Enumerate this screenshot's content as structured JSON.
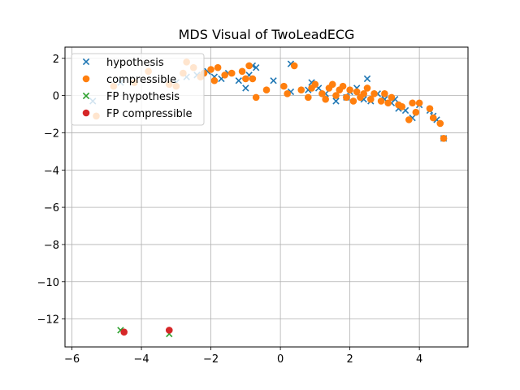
{
  "chart_data": {
    "type": "scatter",
    "title": "MDS Visual of TwoLeadECG",
    "xlabel": "",
    "ylabel": "",
    "xlim": [
      -6.2,
      5.4
    ],
    "ylim": [
      -13.5,
      2.6
    ],
    "xticks": [
      -6,
      -4,
      -2,
      0,
      2,
      4
    ],
    "yticks": [
      2,
      0,
      -2,
      -4,
      -6,
      -8,
      -10,
      -12
    ],
    "xtick_labels": [
      "−6",
      "−4",
      "−2",
      "0",
      "2",
      "4"
    ],
    "ytick_labels": [
      "2",
      "0",
      "−2",
      "−4",
      "−6",
      "−8",
      "−10",
      "−12"
    ],
    "grid": true,
    "legend_position": "top-left",
    "series": [
      {
        "name": "hypothesis",
        "marker": "x",
        "color": "#1f77b4",
        "points": [
          [
            -5.4,
            -0.3
          ],
          [
            -4.6,
            0.7
          ],
          [
            -3.0,
            0.7
          ],
          [
            -2.7,
            1.0
          ],
          [
            -2.4,
            1.1
          ],
          [
            -2.1,
            1.3
          ],
          [
            -1.9,
            1.0
          ],
          [
            -1.7,
            0.9
          ],
          [
            -1.5,
            1.2
          ],
          [
            -1.2,
            0.8
          ],
          [
            -1.0,
            0.4
          ],
          [
            -0.9,
            1.1
          ],
          [
            -0.8,
            1.6
          ],
          [
            -0.7,
            1.5
          ],
          [
            -0.2,
            0.8
          ],
          [
            0.3,
            0.2
          ],
          [
            0.3,
            1.7
          ],
          [
            0.8,
            0.3
          ],
          [
            0.9,
            0.7
          ],
          [
            1.1,
            0.4
          ],
          [
            1.3,
            0.1
          ],
          [
            1.6,
            -0.3
          ],
          [
            1.9,
            -0.1
          ],
          [
            2.0,
            0.2
          ],
          [
            2.2,
            0.4
          ],
          [
            2.4,
            -0.2
          ],
          [
            2.5,
            0.9
          ],
          [
            2.6,
            -0.3
          ],
          [
            2.8,
            0.1
          ],
          [
            3.0,
            -0.2
          ],
          [
            3.2,
            -0.4
          ],
          [
            3.3,
            -0.2
          ],
          [
            3.4,
            -0.7
          ],
          [
            3.6,
            -0.8
          ],
          [
            3.8,
            -1.2
          ],
          [
            4.0,
            -0.5
          ],
          [
            4.3,
            -0.8
          ],
          [
            4.4,
            -1.1
          ],
          [
            4.5,
            -1.3
          ],
          [
            4.7,
            -2.3
          ]
        ]
      },
      {
        "name": "compressible",
        "marker": "o",
        "color": "#ff7f0e",
        "points": [
          [
            -5.3,
            -1.1
          ],
          [
            -4.8,
            0.5
          ],
          [
            -4.2,
            0.7
          ],
          [
            -3.8,
            1.3
          ],
          [
            -3.2,
            0.6
          ],
          [
            -3.0,
            0.5
          ],
          [
            -2.8,
            1.2
          ],
          [
            -2.7,
            1.8
          ],
          [
            -2.5,
            1.5
          ],
          [
            -2.3,
            1.0
          ],
          [
            -2.2,
            1.2
          ],
          [
            -2.0,
            1.4
          ],
          [
            -1.9,
            0.8
          ],
          [
            -1.8,
            1.5
          ],
          [
            -1.6,
            1.1
          ],
          [
            -1.4,
            1.2
          ],
          [
            -1.1,
            1.3
          ],
          [
            -1.0,
            0.9
          ],
          [
            -0.9,
            1.6
          ],
          [
            -0.8,
            0.9
          ],
          [
            -0.7,
            -0.1
          ],
          [
            -0.4,
            0.3
          ],
          [
            0.1,
            0.5
          ],
          [
            0.2,
            0.1
          ],
          [
            0.4,
            1.6
          ],
          [
            0.6,
            0.3
          ],
          [
            0.8,
            -0.1
          ],
          [
            0.9,
            0.4
          ],
          [
            1.0,
            0.6
          ],
          [
            1.2,
            0.1
          ],
          [
            1.3,
            -0.2
          ],
          [
            1.4,
            0.4
          ],
          [
            1.5,
            0.6
          ],
          [
            1.6,
            0.0
          ],
          [
            1.7,
            0.3
          ],
          [
            1.8,
            0.5
          ],
          [
            1.9,
            -0.1
          ],
          [
            2.0,
            0.3
          ],
          [
            2.1,
            -0.3
          ],
          [
            2.2,
            0.2
          ],
          [
            2.3,
            -0.1
          ],
          [
            2.4,
            0.1
          ],
          [
            2.5,
            0.4
          ],
          [
            2.6,
            -0.2
          ],
          [
            2.7,
            0.1
          ],
          [
            2.9,
            -0.3
          ],
          [
            3.0,
            0.1
          ],
          [
            3.1,
            -0.4
          ],
          [
            3.2,
            -0.1
          ],
          [
            3.4,
            -0.5
          ],
          [
            3.5,
            -0.6
          ],
          [
            3.7,
            -1.3
          ],
          [
            3.8,
            -0.4
          ],
          [
            3.9,
            -0.9
          ],
          [
            4.0,
            -0.4
          ],
          [
            4.3,
            -0.7
          ],
          [
            4.4,
            -1.2
          ],
          [
            4.6,
            -1.5
          ],
          [
            4.7,
            -2.3
          ]
        ]
      },
      {
        "name": "FP hypothesis",
        "marker": "x",
        "color": "#2ca02c",
        "points": [
          [
            -4.6,
            -12.6
          ],
          [
            -3.2,
            -12.8
          ]
        ]
      },
      {
        "name": "FP compressible",
        "marker": "o",
        "color": "#d62728",
        "points": [
          [
            -4.5,
            -12.7
          ],
          [
            -3.2,
            -12.6
          ]
        ]
      }
    ]
  }
}
